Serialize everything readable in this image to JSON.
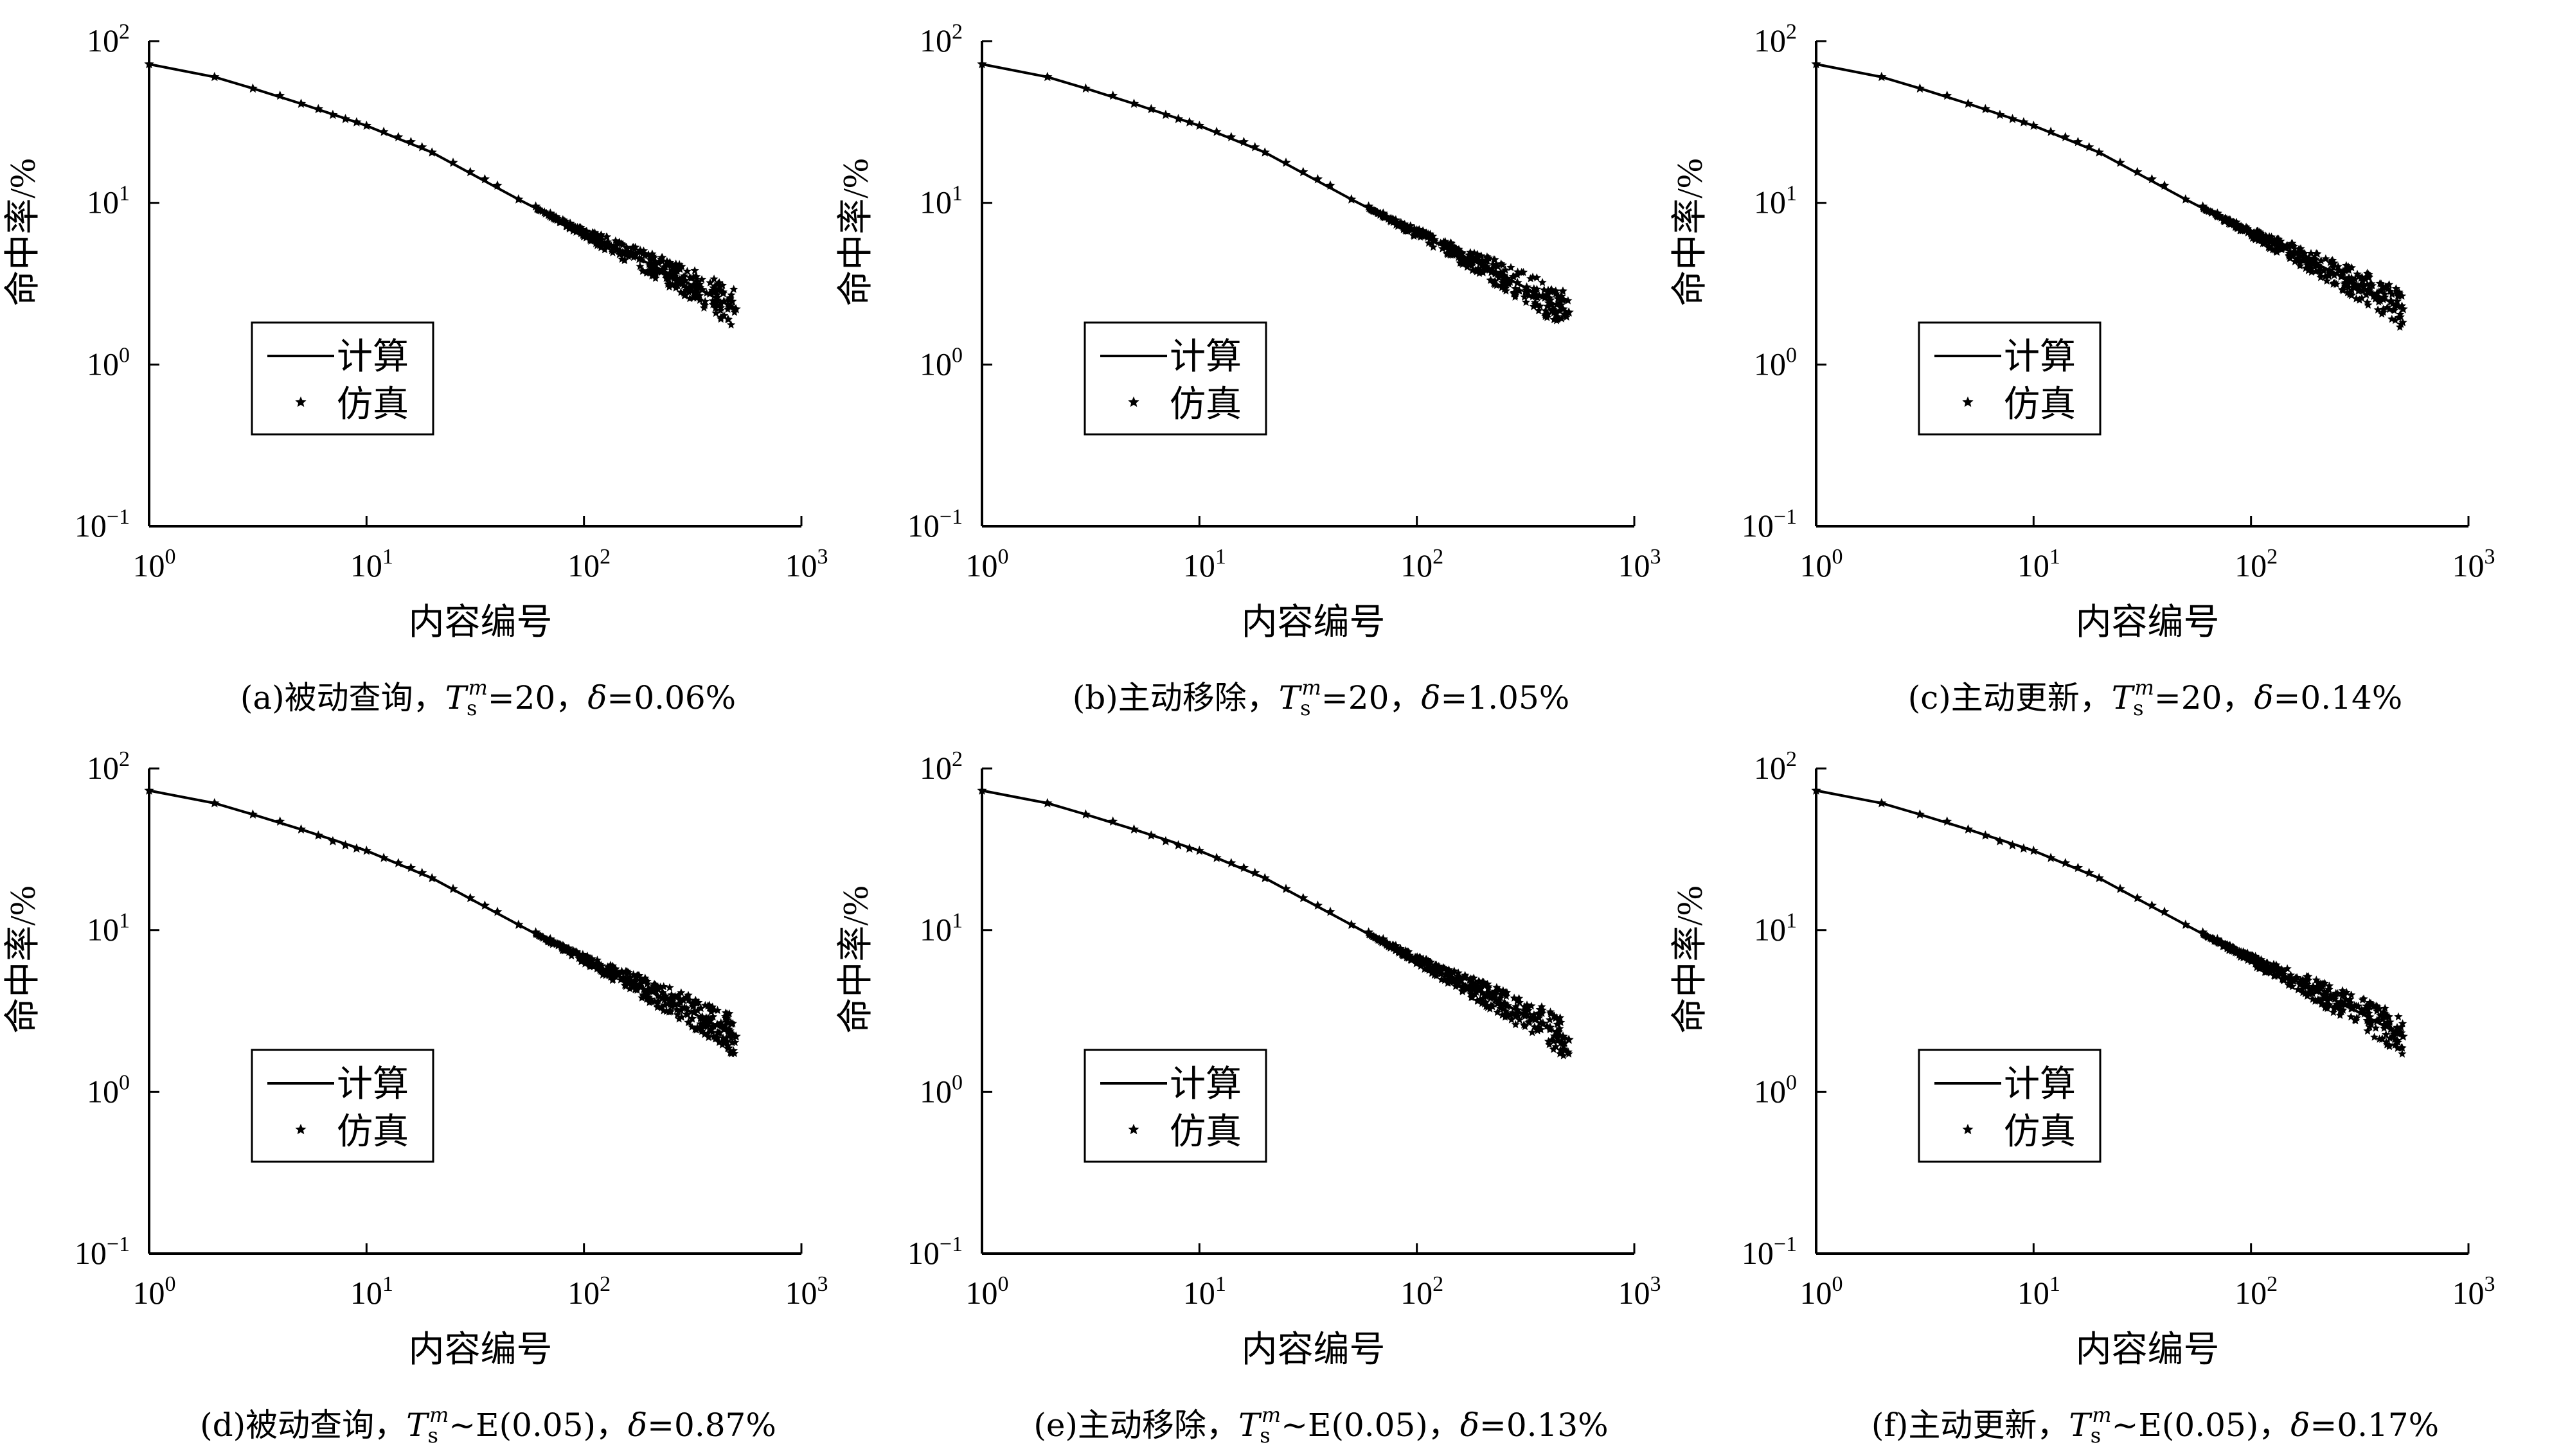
{
  "chart_data": [
    {
      "type": "line",
      "panel": "a",
      "xlabel": "内容编号",
      "ylabel": "命中率/%",
      "xscale": "log",
      "yscale": "log",
      "xlim": [
        1,
        1000
      ],
      "ylim": [
        0.1,
        100
      ],
      "xticks": [
        "10^0",
        "10^1",
        "10^2",
        "10^3"
      ],
      "yticks": [
        "10^-1",
        "10^0",
        "10^1",
        "10^2"
      ],
      "legend": {
        "placement": "center-left",
        "entries": [
          "计算",
          "仿真"
        ]
      },
      "caption": {
        "prefix": "(a)被动查询，",
        "T": "T",
        "sub": "s",
        "sup": "m",
        "rest": "=20，",
        "delta": "δ",
        "suffix": "=0.06%"
      },
      "series": [
        {
          "name": "计算",
          "style": "line",
          "x": [
            1,
            2,
            3,
            5,
            10,
            20,
            50,
            100,
            200,
            300,
            400,
            500
          ],
          "y": [
            72,
            60,
            51,
            41,
            30,
            20.5,
            10.5,
            6.5,
            4.2,
            3.2,
            2.6,
            2.2
          ]
        },
        {
          "name": "仿真",
          "style": "markers",
          "jitter": [
            0.02,
            0.25
          ],
          "x": [
            1,
            2,
            3,
            4,
            5,
            6,
            7,
            8,
            9,
            10,
            12,
            14,
            16,
            18,
            20,
            25,
            30,
            35,
            40,
            50,
            60,
            70,
            80,
            90,
            100,
            120,
            140,
            160,
            180,
            200,
            230,
            260,
            290,
            320,
            350,
            380,
            410,
            440,
            470,
            500
          ],
          "y": [
            72,
            60,
            51,
            46,
            41,
            38,
            35,
            33,
            31.5,
            30,
            27.5,
            25.5,
            23.8,
            22.1,
            20.5,
            17.7,
            15.5,
            14,
            12.8,
            10.5,
            9.5,
            8.6,
            7.8,
            7.1,
            6.5,
            5.9,
            5.4,
            4.9,
            4.5,
            4.2,
            3.8,
            3.5,
            3.3,
            3.1,
            2.9,
            2.75,
            2.6,
            2.45,
            2.3,
            2.2
          ]
        }
      ]
    },
    {
      "type": "line",
      "panel": "b",
      "xlabel": "内容编号",
      "ylabel": "命中率/%",
      "xscale": "log",
      "yscale": "log",
      "xlim": [
        1,
        1000
      ],
      "ylim": [
        0.1,
        100
      ],
      "xticks": [
        "10^0",
        "10^1",
        "10^2",
        "10^3"
      ],
      "yticks": [
        "10^-1",
        "10^0",
        "10^1",
        "10^2"
      ],
      "legend": {
        "placement": "center-left",
        "entries": [
          "计算",
          "仿真"
        ]
      },
      "caption": {
        "prefix": "(b)主动移除，",
        "T": "T",
        "sub": "s",
        "sup": "m",
        "rest": "=20，",
        "delta": "δ",
        "suffix": "=1.05%"
      },
      "series": [
        {
          "name": "计算",
          "style": "line",
          "x": [
            1,
            2,
            3,
            5,
            10,
            20,
            50,
            100,
            200,
            300,
            400,
            500
          ],
          "y": [
            72,
            60,
            51,
            41,
            30,
            20.5,
            10.5,
            6.5,
            4.1,
            3.1,
            2.5,
            2.1
          ]
        },
        {
          "name": "仿真",
          "style": "markers",
          "jitter": [
            0.02,
            0.25
          ],
          "x": [
            1,
            2,
            3,
            4,
            5,
            6,
            7,
            8,
            9,
            10,
            12,
            14,
            16,
            18,
            20,
            25,
            30,
            35,
            40,
            50,
            60,
            70,
            80,
            90,
            100,
            120,
            140,
            160,
            180,
            200,
            230,
            260,
            290,
            320,
            350,
            380,
            410,
            440,
            470,
            500
          ],
          "y": [
            72,
            60,
            51,
            46,
            41,
            38,
            35,
            33,
            31.5,
            30,
            27.5,
            25.5,
            23.8,
            22.1,
            20.5,
            17.7,
            15.5,
            14,
            12.8,
            10.5,
            9.5,
            8.6,
            7.8,
            7.1,
            6.5,
            5.9,
            5.4,
            4.9,
            4.5,
            4.1,
            3.7,
            3.4,
            3.2,
            3.0,
            2.8,
            2.65,
            2.5,
            2.35,
            2.2,
            2.1
          ]
        }
      ]
    },
    {
      "type": "line",
      "panel": "c",
      "xlabel": "内容编号",
      "ylabel": "命中率/%",
      "xscale": "log",
      "yscale": "log",
      "xlim": [
        1,
        1000
      ],
      "ylim": [
        0.1,
        100
      ],
      "xticks": [
        "10^0",
        "10^1",
        "10^2",
        "10^3"
      ],
      "yticks": [
        "10^-1",
        "10^0",
        "10^1",
        "10^2"
      ],
      "legend": {
        "placement": "center-left",
        "entries": [
          "计算",
          "仿真"
        ]
      },
      "caption": {
        "prefix": "(c)主动更新，",
        "T": "T",
        "sub": "s",
        "sup": "m",
        "rest": "=20，",
        "delta": "δ",
        "suffix": "=0.14%"
      },
      "series": [
        {
          "name": "计算",
          "style": "line",
          "x": [
            1,
            2,
            3,
            5,
            10,
            20,
            50,
            100,
            200,
            300,
            400,
            500
          ],
          "y": [
            72,
            60,
            51,
            41,
            30,
            20.5,
            10.5,
            6.5,
            4.2,
            3.2,
            2.6,
            2.2
          ]
        },
        {
          "name": "仿真",
          "style": "markers",
          "jitter": [
            0.02,
            0.25
          ],
          "x": [
            1,
            2,
            3,
            4,
            5,
            6,
            7,
            8,
            9,
            10,
            12,
            14,
            16,
            18,
            20,
            25,
            30,
            35,
            40,
            50,
            60,
            70,
            80,
            90,
            100,
            120,
            140,
            160,
            180,
            200,
            230,
            260,
            290,
            320,
            350,
            380,
            410,
            440,
            470,
            500
          ],
          "y": [
            72,
            60,
            51,
            46,
            41,
            38,
            35,
            33,
            31.5,
            30,
            27.5,
            25.5,
            23.8,
            22.1,
            20.5,
            17.7,
            15.5,
            14,
            12.8,
            10.5,
            9.5,
            8.6,
            7.8,
            7.1,
            6.5,
            5.9,
            5.4,
            4.9,
            4.5,
            4.2,
            3.8,
            3.5,
            3.3,
            3.1,
            2.9,
            2.75,
            2.6,
            2.45,
            2.3,
            2.2
          ]
        }
      ]
    },
    {
      "type": "line",
      "panel": "d",
      "xlabel": "内容编号",
      "ylabel": "命中率/%",
      "xscale": "log",
      "yscale": "log",
      "xlim": [
        1,
        1000
      ],
      "ylim": [
        0.1,
        100
      ],
      "xticks": [
        "10^0",
        "10^1",
        "10^2",
        "10^3"
      ],
      "yticks": [
        "10^-1",
        "10^0",
        "10^1",
        "10^2"
      ],
      "legend": {
        "placement": "center-left",
        "entries": [
          "计算",
          "仿真"
        ]
      },
      "caption": {
        "prefix": "(d)被动查询，",
        "T": "T",
        "sub": "s",
        "sup": "m",
        "rest": "~E(0.05)，",
        "delta": "δ",
        "suffix": "=0.87%"
      },
      "series": [
        {
          "name": "计算",
          "style": "line",
          "x": [
            1,
            2,
            3,
            5,
            10,
            20,
            50,
            100,
            200,
            300,
            400,
            500
          ],
          "y": [
            73,
            61,
            52,
            42,
            31,
            21,
            10.8,
            6.6,
            4.2,
            3.2,
            2.6,
            2.2
          ]
        },
        {
          "name": "仿真",
          "style": "markers",
          "jitter": [
            0.02,
            0.25
          ],
          "x": [
            1,
            2,
            3,
            4,
            5,
            6,
            7,
            8,
            9,
            10,
            12,
            14,
            16,
            18,
            20,
            25,
            30,
            35,
            40,
            50,
            60,
            70,
            80,
            90,
            100,
            120,
            140,
            160,
            180,
            200,
            230,
            260,
            290,
            320,
            350,
            380,
            410,
            440,
            470,
            500
          ],
          "y": [
            73,
            61,
            52,
            47,
            42,
            38.5,
            35.5,
            33.5,
            32,
            31,
            28,
            26,
            24.3,
            22.6,
            21,
            18,
            15.8,
            14.2,
            13,
            10.8,
            9.7,
            8.8,
            8,
            7.3,
            6.6,
            6,
            5.5,
            5,
            4.6,
            4.2,
            3.8,
            3.5,
            3.3,
            3.1,
            2.9,
            2.75,
            2.6,
            2.45,
            2.3,
            2.2
          ]
        }
      ]
    },
    {
      "type": "line",
      "panel": "e",
      "xlabel": "内容编号",
      "ylabel": "命中率/%",
      "xscale": "log",
      "yscale": "log",
      "xlim": [
        1,
        1000
      ],
      "ylim": [
        0.1,
        100
      ],
      "xticks": [
        "10^0",
        "10^1",
        "10^2",
        "10^3"
      ],
      "yticks": [
        "10^-1",
        "10^0",
        "10^1",
        "10^2"
      ],
      "legend": {
        "placement": "center-left",
        "entries": [
          "计算",
          "仿真"
        ]
      },
      "caption": {
        "prefix": "(e)主动移除，",
        "T": "T",
        "sub": "s",
        "sup": "m",
        "rest": "~E(0.05)，",
        "delta": "δ",
        "suffix": "=0.13%"
      },
      "series": [
        {
          "name": "计算",
          "style": "line",
          "x": [
            1,
            2,
            3,
            5,
            10,
            20,
            50,
            100,
            200,
            300,
            400,
            500
          ],
          "y": [
            73,
            61,
            52,
            42,
            31,
            21,
            10.8,
            6.5,
            4.1,
            3.1,
            2.5,
            2.1
          ]
        },
        {
          "name": "仿真",
          "style": "markers",
          "jitter": [
            0.02,
            0.25
          ],
          "x": [
            1,
            2,
            3,
            4,
            5,
            6,
            7,
            8,
            9,
            10,
            12,
            14,
            16,
            18,
            20,
            25,
            30,
            35,
            40,
            50,
            60,
            70,
            80,
            90,
            100,
            120,
            140,
            160,
            180,
            200,
            230,
            260,
            290,
            320,
            350,
            380,
            410,
            440,
            470,
            500
          ],
          "y": [
            73,
            61,
            52,
            47,
            42,
            38.5,
            35.5,
            33.5,
            32,
            31,
            28,
            26,
            24.3,
            22.6,
            21,
            18,
            15.8,
            14.2,
            13,
            10.8,
            9.7,
            8.8,
            8,
            7.2,
            6.5,
            5.9,
            5.4,
            4.9,
            4.5,
            4.1,
            3.7,
            3.4,
            3.2,
            3.0,
            2.8,
            2.65,
            2.5,
            2.35,
            2.2,
            2.1
          ]
        }
      ]
    },
    {
      "type": "line",
      "panel": "f",
      "xlabel": "内容编号",
      "ylabel": "命中率/%",
      "xscale": "log",
      "yscale": "log",
      "xlim": [
        1,
        1000
      ],
      "ylim": [
        0.1,
        100
      ],
      "xticks": [
        "10^0",
        "10^1",
        "10^2",
        "10^3"
      ],
      "yticks": [
        "10^-1",
        "10^0",
        "10^1",
        "10^2"
      ],
      "legend": {
        "placement": "center-left",
        "entries": [
          "计算",
          "仿真"
        ]
      },
      "caption": {
        "prefix": "(f)主动更新，",
        "T": "T",
        "sub": "s",
        "sup": "m",
        "rest": "~E(0.05)，",
        "delta": "δ",
        "suffix": "=0.17%"
      },
      "series": [
        {
          "name": "计算",
          "style": "line",
          "x": [
            1,
            2,
            3,
            5,
            10,
            20,
            50,
            100,
            200,
            300,
            400,
            500
          ],
          "y": [
            73,
            61,
            52,
            42,
            31,
            21,
            10.8,
            6.6,
            4.2,
            3.2,
            2.6,
            2.2
          ]
        },
        {
          "name": "仿真",
          "style": "markers",
          "jitter": [
            0.02,
            0.25
          ],
          "x": [
            1,
            2,
            3,
            4,
            5,
            6,
            7,
            8,
            9,
            10,
            12,
            14,
            16,
            18,
            20,
            25,
            30,
            35,
            40,
            50,
            60,
            70,
            80,
            90,
            100,
            120,
            140,
            160,
            180,
            200,
            230,
            260,
            290,
            320,
            350,
            380,
            410,
            440,
            470,
            500
          ],
          "y": [
            73,
            61,
            52,
            47,
            42,
            38.5,
            35.5,
            33.5,
            32,
            31,
            28,
            26,
            24.3,
            22.6,
            21,
            18,
            15.8,
            14.2,
            13,
            10.8,
            9.7,
            8.8,
            8,
            7.3,
            6.6,
            6,
            5.5,
            5,
            4.6,
            4.2,
            3.8,
            3.5,
            3.3,
            3.1,
            2.9,
            2.75,
            2.6,
            2.45,
            2.3,
            2.2
          ]
        }
      ]
    }
  ],
  "colors": {
    "line": "#000000",
    "marker": "#000000",
    "background": "#ffffff"
  }
}
